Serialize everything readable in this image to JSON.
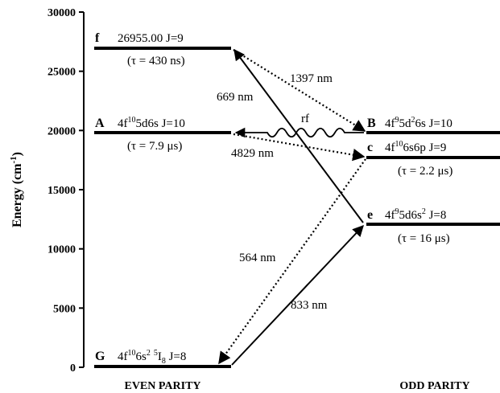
{
  "axis": {
    "ylabel": "Energy (cm",
    "ylabel_exp": "-1",
    "ylabel_close": ")",
    "y_range": [
      0,
      30000
    ],
    "ticks": [
      "0",
      "5000",
      "10000",
      "15000",
      "20000",
      "25000",
      "30000"
    ]
  },
  "columns": {
    "left": "EVEN PARITY",
    "right": "ODD PARITY"
  },
  "levels": {
    "f": {
      "letter": "f",
      "energy": 26955,
      "line1": "26955.00  J=9",
      "life": "(τ = 430 ns)"
    },
    "A": {
      "letter": "A",
      "energy": 19798,
      "cfg_a": "4f",
      "cfg_a_sup": "10",
      "cfg_b": "5d6s J=10",
      "life": "(τ = 7.9 μs)"
    },
    "G": {
      "letter": "G",
      "energy": 0,
      "cfg_a": "4f",
      "cfg_a_sup": "10",
      "cfg_b": "6s",
      "cfg_b_sup": "2",
      "cfg_c_sup": "5",
      "cfg_c": "I",
      "cfg_c_sub": "8",
      "cfg_d": " J=8"
    },
    "B": {
      "letter": "B",
      "energy": 19798,
      "cfg_a": "4f",
      "cfg_a_sup": "9",
      "cfg_b": "5d",
      "cfg_b_sup": "2",
      "cfg_c": "6s J=10"
    },
    "c": {
      "letter": "c",
      "energy": 17727,
      "cfg_a": "4f",
      "cfg_a_sup": "10",
      "cfg_b": "6s6p J=9",
      "life": "(τ = 2.2 μs)"
    },
    "e": {
      "letter": "e",
      "energy": 12007,
      "cfg_a": "4f",
      "cfg_a_sup": "9",
      "cfg_b": "5d6s",
      "cfg_b_sup": "2",
      "cfg_c": " J=8",
      "life": "(τ = 16 μs)"
    }
  },
  "transitions": {
    "t1397": "1397 nm",
    "t669": "669 nm",
    "rf": "rf",
    "t4829": "4829 nm",
    "t564": "564 nm",
    "t833": "833 nm"
  }
}
